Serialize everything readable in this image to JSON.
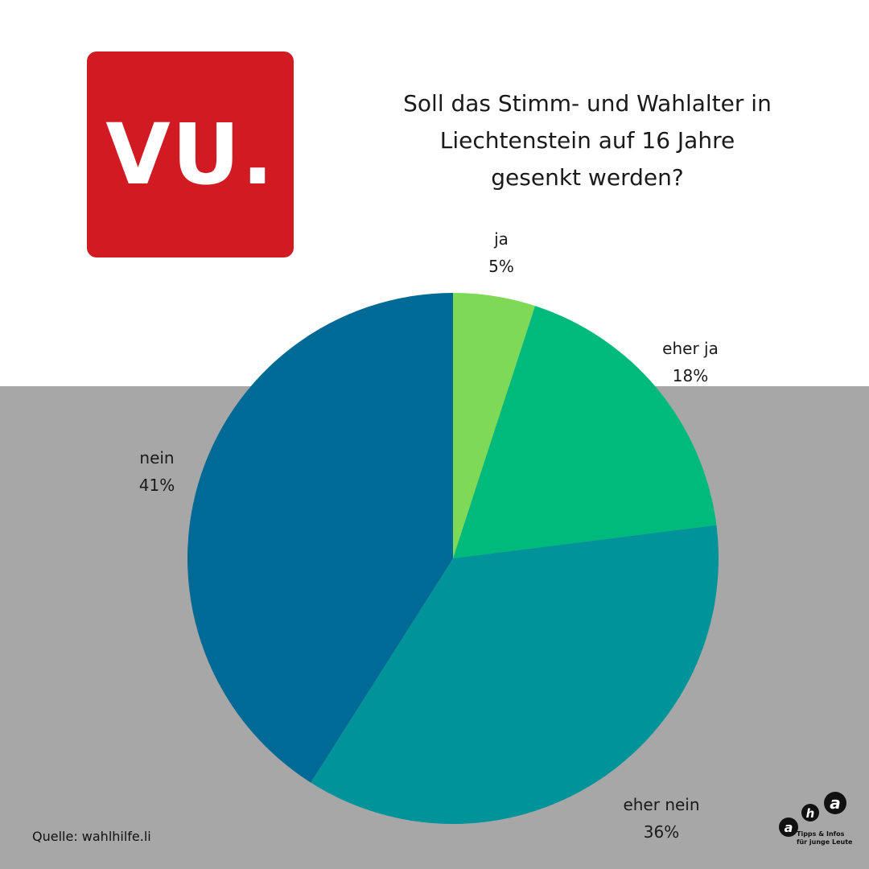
{
  "logo": {
    "text": "VU.",
    "color": "#d11a22"
  },
  "title_lines": [
    "Soll das Stimm- und Wahlalter in",
    "Liechtenstein auf 16 Jahre",
    "gesenkt werden?"
  ],
  "chart_data": {
    "type": "pie",
    "title": "Soll das Stimm- und Wahlalter in Liechtenstein auf 16 Jahre gesenkt werden?",
    "slices": [
      {
        "label": "ja",
        "value": 5,
        "display": "5%",
        "color": "#7ed957"
      },
      {
        "label": "eher ja",
        "value": 18,
        "display": "18%",
        "color": "#00ba7c"
      },
      {
        "label": "eher nein",
        "value": 36,
        "display": "36%",
        "color": "#00939a"
      },
      {
        "label": "nein",
        "value": 41,
        "display": "41%",
        "color": "#006a96"
      }
    ],
    "start": "top",
    "direction": "clockwise"
  },
  "source": "Quelle: wahlhilfe.li",
  "footer_logo": {
    "letters": "aha",
    "tagline_1": "Tipps & Infos",
    "tagline_2": "für junge Leute"
  },
  "colors": {
    "background_top": "#ffffff",
    "background_bottom": "#a7a7a7"
  }
}
